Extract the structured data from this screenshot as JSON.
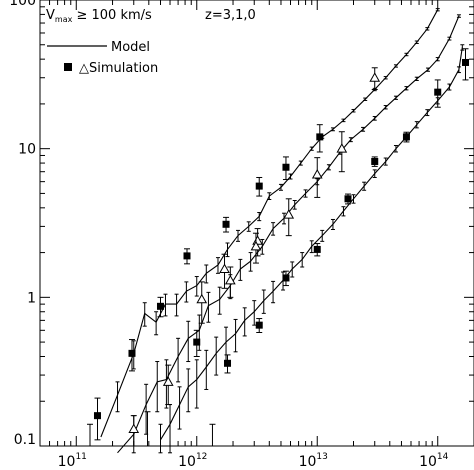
{
  "chart_data": {
    "type": "line",
    "title": "",
    "xlabel": "",
    "ylabel": "",
    "xscale": "log",
    "yscale": "log",
    "xlim": [
      50000000000.0,
      200000000000000.0
    ],
    "ylim": [
      0.1,
      100
    ],
    "x_tick_labels": [
      {
        "value": 100000000000.0,
        "base": "10",
        "exp": "11"
      },
      {
        "value": 1000000000000.0,
        "base": "10",
        "exp": "12"
      },
      {
        "value": 10000000000000.0,
        "base": "10",
        "exp": "13"
      },
      {
        "value": 100000000000000.0,
        "base": "10",
        "exp": "14"
      }
    ],
    "y_tick_labels": [
      {
        "value": 0.1,
        "label": "0.1"
      },
      {
        "value": 1,
        "label": "1"
      },
      {
        "value": 10,
        "label": "10"
      },
      {
        "value": 100,
        "label": "100"
      }
    ],
    "annotations": {
      "vmax_v": "V",
      "vmax_sub": "max",
      "vmax_rest": " ≥ 100 km/s",
      "redshifts": "z=3,1,0"
    },
    "legend": {
      "position": "top-left",
      "model_label": "Model",
      "simulation_label": "△Simulation"
    },
    "model_series": [
      {
        "redshift": "z=3",
        "x": [
          160000000000.0,
          220000000000.0,
          300000000000.0,
          370000000000.0,
          460000000000.0,
          550000000000.0,
          680000000000.0,
          820000000000.0,
          1000000000000.0,
          1200000000000.0,
          1500000000000.0,
          1800000000000.0,
          2200000000000.0,
          2700000000000.0,
          3300000000000.0,
          4000000000000.0,
          5000000000000.0,
          6000000000000.0,
          7300000000000.0,
          9000000000000.0,
          11000000000000.0,
          13500000000000.0,
          16500000000000.0,
          20000000000000.0,
          25000000000000.0,
          30000000000000.0,
          37000000000000.0,
          45000000000000.0,
          55000000000000.0,
          67000000000000.0,
          82000000000000.0,
          100000000000000.0
        ],
        "y": [
          0.115,
          0.22,
          0.42,
          0.78,
          0.68,
          0.9,
          0.9,
          1.1,
          1.2,
          1.45,
          1.65,
          2.1,
          2.6,
          3.0,
          3.5,
          4.8,
          5.5,
          6.5,
          8.0,
          10.0,
          12.0,
          13.5,
          15.5,
          18.0,
          21.5,
          25.0,
          30.0,
          36.0,
          43.0,
          52.0,
          64.0,
          86.0
        ],
        "err": [
          0,
          0.05,
          0.09,
          0.14,
          0.12,
          0.15,
          0.15,
          0.17,
          0.18,
          0.2,
          0.2,
          0.22,
          0.22,
          0.22,
          0.22,
          0.25,
          0.25,
          0.25,
          0.25,
          0.25,
          0.25,
          0.3,
          0.3,
          0.35,
          0.4,
          0.45,
          0.55,
          0.65,
          0.8,
          1.0,
          1.2,
          1.5
        ]
      },
      {
        "redshift": "z=1",
        "x": [
          220000000000.0,
          300000000000.0,
          380000000000.0,
          470000000000.0,
          560000000000.0,
          700000000000.0,
          850000000000.0,
          1050000000000.0,
          1250000000000.0,
          1550000000000.0,
          1900000000000.0,
          2300000000000.0,
          2800000000000.0,
          3500000000000.0,
          4300000000000.0,
          5300000000000.0,
          6500000000000.0,
          8000000000000.0,
          10000000000000.0,
          12500000000000.0,
          15500000000000.0,
          19000000000000.0,
          24000000000000.0,
          30000000000000.0,
          37000000000000.0,
          45000000000000.0,
          55000000000000.0,
          67000000000000.0,
          83000000000000.0,
          100000000000000.0,
          125000000000000.0,
          150000000000000.0
        ],
        "y": [
          0.09,
          0.12,
          0.19,
          0.27,
          0.28,
          0.4,
          0.53,
          0.6,
          0.88,
          0.97,
          1.2,
          1.55,
          1.75,
          2.2,
          2.9,
          3.4,
          4.2,
          5.0,
          6.0,
          7.5,
          9.5,
          11.5,
          13.5,
          16.0,
          19.0,
          22.0,
          25.5,
          29.5,
          34.0,
          40.0,
          55.0,
          78.0
        ],
        "err": [
          0,
          0.04,
          0.07,
          0.1,
          0.1,
          0.13,
          0.16,
          0.16,
          0.2,
          0.2,
          0.22,
          0.25,
          0.25,
          0.25,
          0.28,
          0.28,
          0.28,
          0.28,
          0.28,
          0.3,
          0.33,
          0.35,
          0.4,
          0.45,
          0.5,
          0.55,
          0.65,
          0.75,
          0.85,
          1.0,
          1.2,
          1.5
        ]
      },
      {
        "redshift": "z=0",
        "x": [
          500000000000.0,
          600000000000.0,
          720000000000.0,
          850000000000.0,
          1000000000000.0,
          1200000000000.0,
          1450000000000.0,
          1750000000000.0,
          2100000000000.0,
          2500000000000.0,
          3000000000000.0,
          3600000000000.0,
          4300000000000.0,
          5200000000000.0,
          6200000000000.0,
          7500000000000.0,
          9000000000000.0,
          11000000000000.0,
          13500000000000.0,
          16500000000000.0,
          20000000000000.0,
          24500000000000.0,
          30000000000000.0,
          37000000000000.0,
          45000000000000.0,
          55000000000000.0,
          67000000000000.0,
          82000000000000.0,
          100000000000000.0,
          125000000000000.0,
          150000000000000.0,
          160000000000000.0
        ],
        "y": [
          0.11,
          0.14,
          0.19,
          0.25,
          0.28,
          0.34,
          0.42,
          0.5,
          0.57,
          0.7,
          0.8,
          0.95,
          1.1,
          1.3,
          1.55,
          1.8,
          2.2,
          2.6,
          3.1,
          3.8,
          4.6,
          5.6,
          6.8,
          8.2,
          10.0,
          12.0,
          14.5,
          17.5,
          21.0,
          26.0,
          34.0,
          48.0
        ],
        "err": [
          0.03,
          0.05,
          0.06,
          0.08,
          0.1,
          0.1,
          0.12,
          0.13,
          0.14,
          0.15,
          0.15,
          0.17,
          0.18,
          0.18,
          0.18,
          0.2,
          0.2,
          0.22,
          0.24,
          0.27,
          0.3,
          0.35,
          0.4,
          0.45,
          0.5,
          0.6,
          0.7,
          0.8,
          1.0,
          1.2,
          1.5,
          2.0
        ]
      }
    ],
    "sim_filled": {
      "x": [
        150000000000.0,
        290000000000.0,
        500000000000.0,
        830000000000.0,
        1750000000000.0,
        3300000000000.0,
        5500000000000.0,
        10500000000000.0,
        1000000000000.0,
        1800000000000.0,
        3300000000000.0,
        5500000000000.0,
        10000000000000.0,
        18000000000000.0,
        30000000000000.0,
        55000000000000.0,
        100000000000000.0,
        170000000000000.0
      ],
      "y": [
        0.16,
        0.42,
        0.87,
        1.9,
        3.1,
        5.6,
        7.5,
        12.0,
        0.5,
        0.36,
        0.65,
        1.35,
        2.1,
        4.6,
        8.2,
        12.0,
        24.0,
        38.0
      ],
      "err": [
        0.05,
        0.1,
        0.13,
        0.22,
        0.35,
        0.8,
        1.3,
        2.5,
        0.1,
        0.05,
        0.07,
        0.15,
        0.2,
        0.35,
        0.6,
        0.9,
        5.0,
        9.0
      ]
    },
    "sim_open": {
      "x": [
        300000000000.0,
        580000000000.0,
        1100000000000.0,
        1700000000000.0,
        3200000000000.0,
        5800000000000.0,
        10000000000000.0,
        16000000000000.0,
        30000000000000.0,
        1900000000000.0,
        3100000000000.0
      ],
      "y": [
        0.13,
        0.27,
        0.97,
        1.55,
        2.4,
        3.6,
        6.7,
        10.0,
        30.0,
        1.3,
        2.2
      ],
      "err": [
        0.03,
        0.08,
        0.3,
        0.4,
        0.5,
        1.0,
        2.0,
        3.0,
        5.0,
        0.3,
        0.5
      ]
    },
    "colors": {
      "line": "#000000",
      "background": "#ffffff"
    },
    "grid": false
  }
}
